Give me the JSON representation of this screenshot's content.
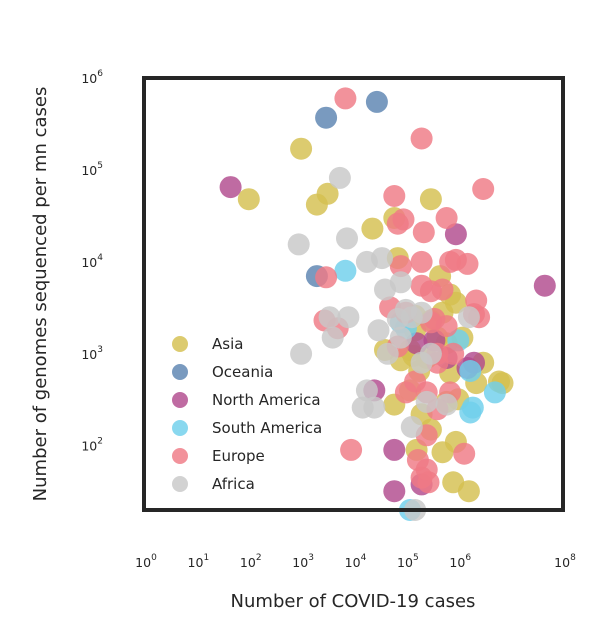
{
  "chart_data": {
    "type": "scatter",
    "xlabel": "Number of COVID-19 cases",
    "ylabel": "Number of genomes sequenced per mn cases",
    "xscale": "log",
    "yscale": "log",
    "xlim": [
      1,
      100000000
    ],
    "ylim": [
      20,
      1000000
    ],
    "x_ticks": [
      {
        "base": "10",
        "exp": "0"
      },
      {
        "base": "10",
        "exp": "1"
      },
      {
        "base": "10",
        "exp": "2"
      },
      {
        "base": "10",
        "exp": "3"
      },
      {
        "base": "10",
        "exp": "4"
      },
      {
        "base": "10",
        "exp": "5"
      },
      {
        "base": "10",
        "exp": "6"
      },
      {
        "base": "10",
        "exp": "8"
      }
    ],
    "x_tick_values": [
      1,
      10,
      100,
      1000,
      10000,
      100000,
      1000000,
      100000000
    ],
    "y_ticks": [
      {
        "base": "10",
        "exp": "2"
      },
      {
        "base": "10",
        "exp": "3"
      },
      {
        "base": "10",
        "exp": "4"
      },
      {
        "base": "10",
        "exp": "5"
      },
      {
        "base": "10",
        "exp": "6"
      }
    ],
    "y_tick_values": [
      100,
      1000,
      10000,
      100000,
      1000000
    ],
    "grid": false,
    "legend_position": "lower-left",
    "series": [
      {
        "name": "Asia",
        "color": "#d4bf4f",
        "points": [
          [
            1000,
            170000
          ],
          [
            3200,
            55000
          ],
          [
            100,
            48000
          ],
          [
            2000,
            42000
          ],
          [
            23000,
            23000
          ],
          [
            60000,
            30000
          ],
          [
            70000,
            11000
          ],
          [
            300000,
            48000
          ],
          [
            900000,
            3600
          ],
          [
            3000000,
            800
          ],
          [
            7000000,
            480
          ],
          [
            1200000,
            1500
          ],
          [
            400000,
            1500
          ],
          [
            600000,
            1300
          ],
          [
            300000,
            2300
          ],
          [
            150000,
            1800
          ],
          [
            2200000,
            480
          ],
          [
            6000000,
            500
          ],
          [
            500000,
            2800
          ],
          [
            120000,
            1100
          ],
          [
            80000,
            850
          ],
          [
            700000,
            620
          ],
          [
            180000,
            650
          ],
          [
            40000,
            1100
          ],
          [
            250000,
            900
          ],
          [
            120000,
            400
          ],
          [
            60000,
            280
          ],
          [
            200000,
            220
          ],
          [
            600000,
            300
          ],
          [
            1000000,
            320
          ],
          [
            800000,
            40
          ],
          [
            1600000,
            32
          ],
          [
            500000,
            85
          ],
          [
            160000,
            90
          ],
          [
            300000,
            150
          ],
          [
            900000,
            110
          ],
          [
            150000,
            2600
          ],
          [
            450000,
            7000
          ],
          [
            700000,
            4400
          ],
          [
            140000,
            950
          ]
        ]
      },
      {
        "name": "Oceania",
        "color": "#5b84b1",
        "points": [
          [
            3000,
            370000
          ],
          [
            28000,
            550000
          ],
          [
            2000,
            7000
          ]
        ]
      },
      {
        "name": "North America",
        "color": "#b14a8e",
        "points": [
          [
            45,
            65000
          ],
          [
            900000,
            20000
          ],
          [
            45000000,
            5500
          ],
          [
            350000,
            1400
          ],
          [
            600000,
            900
          ],
          [
            2000000,
            800
          ],
          [
            1500000,
            700
          ],
          [
            25000,
            400
          ],
          [
            60000,
            90
          ],
          [
            60000,
            32
          ],
          [
            200000,
            38
          ],
          [
            160000,
            1300
          ]
        ]
      },
      {
        "name": "South America",
        "color": "#6fd0ec",
        "points": [
          [
            7000,
            8000
          ],
          [
            1000000,
            1400
          ],
          [
            1700000,
            650
          ],
          [
            1900000,
            260
          ],
          [
            1700000,
            230
          ],
          [
            5000000,
            380
          ],
          [
            80000,
            2200
          ],
          [
            100000,
            1900
          ],
          [
            120000,
            20
          ]
        ]
      },
      {
        "name": "Europe",
        "color": "#ef7a85",
        "points": [
          [
            7000,
            600000
          ],
          [
            200000,
            220000
          ],
          [
            3000000,
            62000
          ],
          [
            60000,
            52000
          ],
          [
            70000,
            26000
          ],
          [
            90000,
            29000
          ],
          [
            600000,
            30000
          ],
          [
            220000,
            21000
          ],
          [
            80000,
            9000
          ],
          [
            200000,
            10000
          ],
          [
            500000,
            5000
          ],
          [
            700000,
            10000
          ],
          [
            900000,
            10500
          ],
          [
            1500000,
            9500
          ],
          [
            2200000,
            3800
          ],
          [
            2000000,
            2700
          ],
          [
            2500000,
            2500
          ],
          [
            3000,
            6800
          ],
          [
            2800,
            2300
          ],
          [
            50000,
            3200
          ],
          [
            100000,
            2800
          ],
          [
            200000,
            5500
          ],
          [
            300000,
            4800
          ],
          [
            350000,
            2400
          ],
          [
            600000,
            2000
          ],
          [
            800000,
            1000
          ],
          [
            300000,
            2200
          ],
          [
            400000,
            800
          ],
          [
            150000,
            500
          ],
          [
            250000,
            380
          ],
          [
            400000,
            250
          ],
          [
            700000,
            380
          ],
          [
            100000,
            380
          ],
          [
            250000,
            130
          ],
          [
            170000,
            70
          ],
          [
            200000,
            45
          ],
          [
            270000,
            40
          ],
          [
            250000,
            55
          ],
          [
            1300000,
            82
          ],
          [
            9000,
            90
          ],
          [
            5000,
            1900
          ],
          [
            70000,
            1200
          ],
          [
            400000,
            1000
          ]
        ]
      },
      {
        "name": "Africa",
        "color": "#c8c8c8",
        "points": [
          [
            5500,
            82000
          ],
          [
            900,
            15500
          ],
          [
            7500,
            18000
          ],
          [
            18000,
            10000
          ],
          [
            35000,
            11000
          ],
          [
            80000,
            6000
          ],
          [
            40000,
            5000
          ],
          [
            3500,
            2500
          ],
          [
            8000,
            2500
          ],
          [
            4000,
            1500
          ],
          [
            1000,
            1000
          ],
          [
            30000,
            1800
          ],
          [
            45000,
            1000
          ],
          [
            70000,
            2400
          ],
          [
            100000,
            3000
          ],
          [
            200000,
            2800
          ],
          [
            130000,
            2500
          ],
          [
            300000,
            1000
          ],
          [
            80000,
            1500
          ],
          [
            200000,
            800
          ],
          [
            1600000,
            2500
          ],
          [
            18000,
            400
          ],
          [
            25000,
            260
          ],
          [
            15000,
            260
          ],
          [
            130000,
            160
          ],
          [
            250000,
            300
          ],
          [
            600000,
            280
          ],
          [
            150000,
            20
          ]
        ]
      }
    ]
  }
}
